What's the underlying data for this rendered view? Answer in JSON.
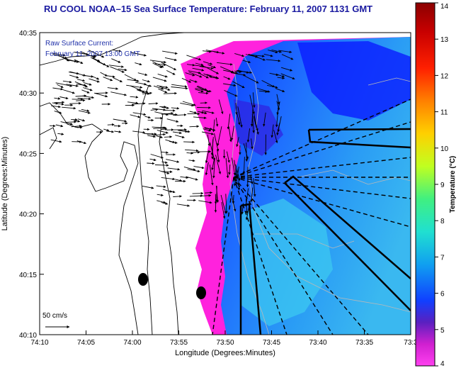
{
  "title": "RU COOL  NOAA–15  Sea Surface Temperature:  February 11, 2007 1131 GMT",
  "overlay": {
    "line1": "Raw Surface Current:",
    "line2": "February 11, 2007 13:00 GMT"
  },
  "scale_label": "50 cm/s",
  "axes": {
    "xlabel": "Longitude (Degrees:Minutes)",
    "ylabel": "Latitude (Degrees:Minutes)",
    "x_ticks": [
      "74:10",
      "74:05",
      "74:00",
      "73:55",
      "73:50",
      "73:45",
      "73:40",
      "73:35",
      "73:3"
    ],
    "y_ticks": [
      "40:35",
      "40:30",
      "40:25",
      "40:20",
      "40:15",
      "40:10"
    ]
  },
  "colorbar": {
    "label": "Temperature (°C)",
    "ticks": [
      "14",
      "13",
      "12",
      "11",
      "10",
      "9",
      "8",
      "7",
      "6",
      "5",
      "4"
    ]
  },
  "colors": {
    "land": "#ffffff",
    "warm_band": "#ff22dd",
    "cool_water": "#2a8aff"
  }
}
